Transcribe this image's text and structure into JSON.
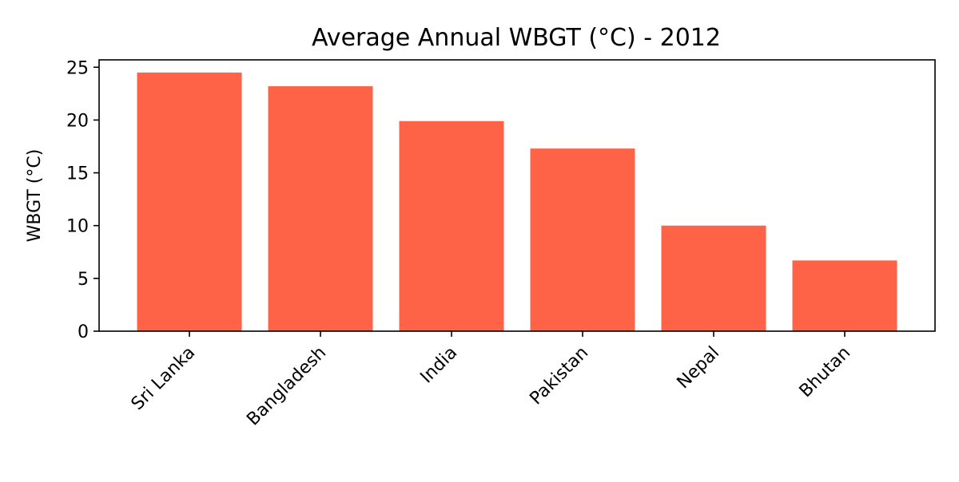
{
  "chart_data": {
    "type": "bar",
    "title": "Average Annual WBGT (°C) - 2012",
    "xlabel": "",
    "ylabel": "WBGT (°C)",
    "categories": [
      "Sri Lanka",
      "Bangladesh",
      "India",
      "Pakistan",
      "Nepal",
      "Bhutan"
    ],
    "values": [
      24.5,
      23.2,
      19.9,
      17.3,
      10.0,
      6.7
    ],
    "ylim": [
      0,
      25.7
    ],
    "yticks": [
      0,
      5,
      10,
      15,
      20,
      25
    ],
    "grid": false,
    "bar_color": "#FF6347"
  }
}
